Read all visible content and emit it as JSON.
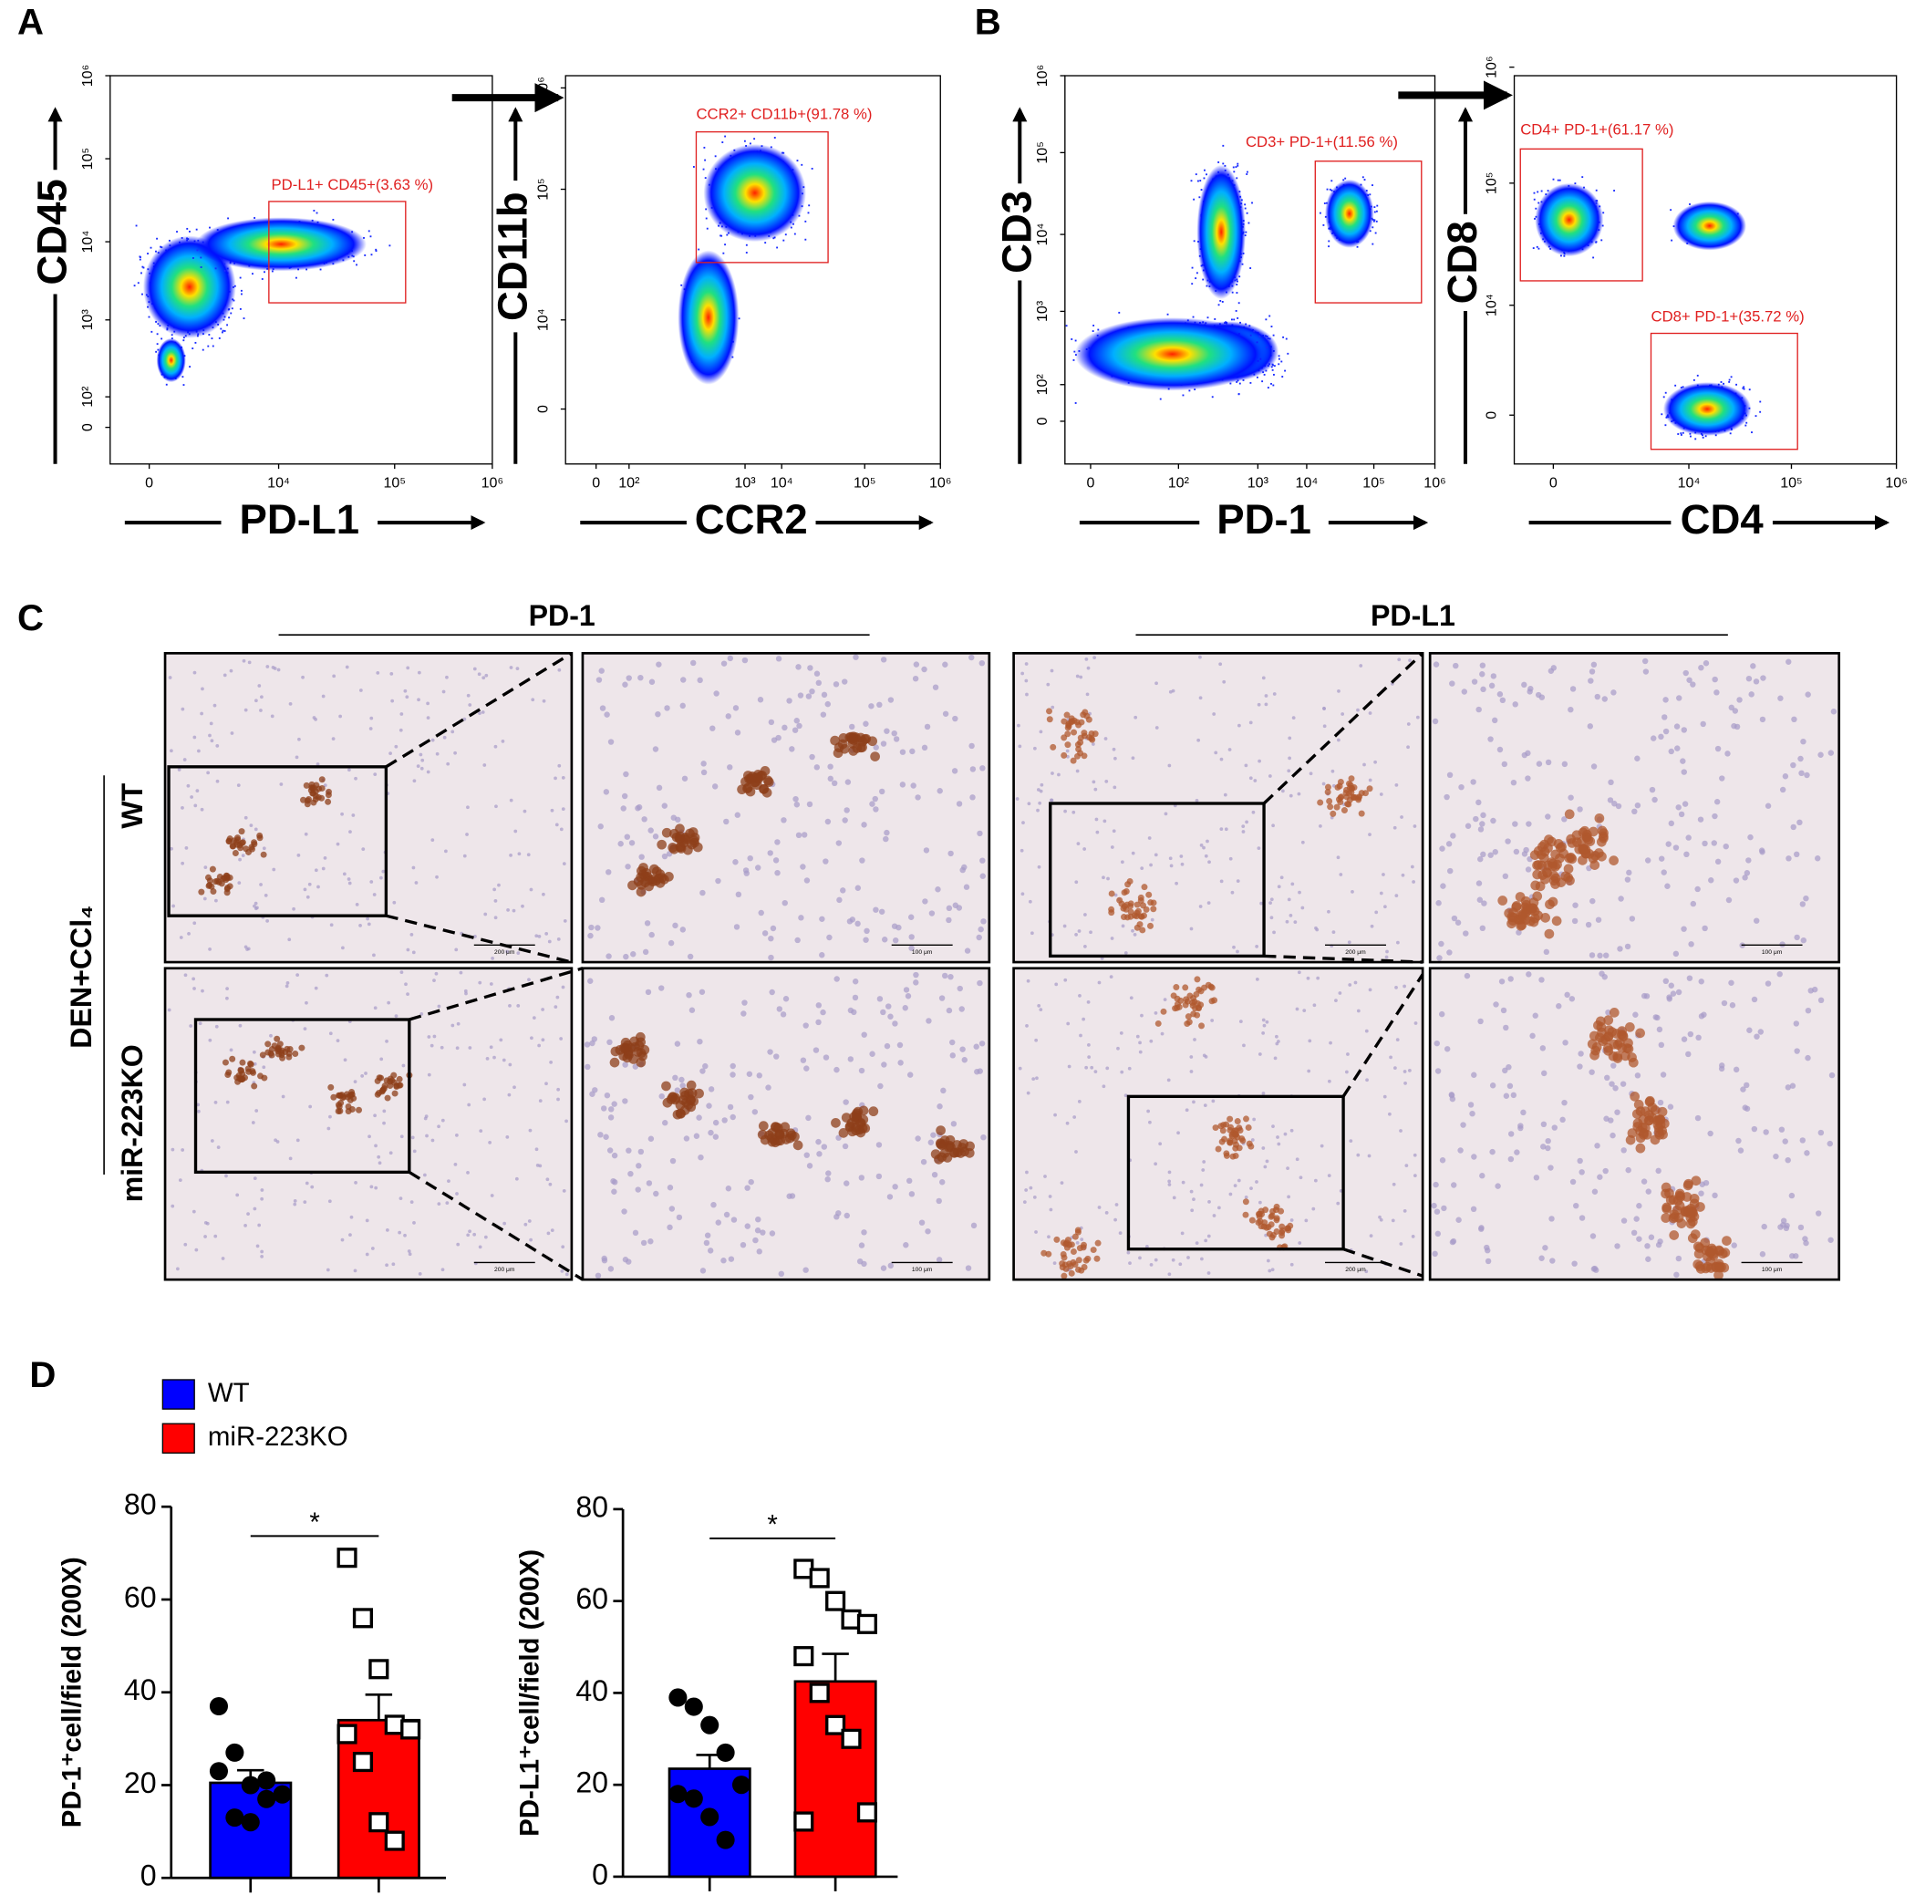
{
  "panel_labels": [
    "A",
    "B",
    "C",
    "D"
  ],
  "flow_plots": [
    {
      "y_label": "CD45",
      "x_label": "PD-L1",
      "yticks": [
        "10⁶",
        "10⁵",
        "10⁴",
        "10³",
        "10²",
        "0"
      ],
      "xticks": [
        "0",
        "10⁴",
        "10⁵",
        "10⁶"
      ],
      "gates": [
        "PD-L1+ CD45+(3.63 %)"
      ]
    },
    {
      "y_label": "CD11b",
      "x_label": "CCR2",
      "yticks": [
        "10⁶",
        "10⁵",
        "10⁴",
        "0"
      ],
      "xticks": [
        "0",
        "10²",
        "10³",
        "10⁴",
        "10⁵",
        "10⁶"
      ],
      "gates": [
        "CCR2+ CD11b+(91.78 %)"
      ]
    },
    {
      "y_label": "CD3",
      "x_label": "PD-1",
      "yticks": [
        "10⁶",
        "10⁵",
        "10⁴",
        "10³",
        "10²",
        "0"
      ],
      "xticks": [
        "0",
        "10²",
        "10³",
        "10⁴",
        "10⁵",
        "10⁶"
      ],
      "gates": [
        "CD3+ PD-1+(11.56 %)"
      ]
    },
    {
      "y_label": "CD8",
      "x_label": "CD4",
      "yticks": [
        "10⁶",
        "10⁵",
        "10⁴",
        "0"
      ],
      "xticks": [
        "0",
        "10⁴",
        "10⁵",
        "10⁶"
      ],
      "gates": [
        "CD4+ PD-1+(61.17 %)",
        "CD8+ PD-1+(35.72 %)"
      ]
    }
  ],
  "histology": {
    "columns": [
      "PD-1",
      "PD-L1"
    ],
    "group": "DEN+CCl₄",
    "rows": [
      "WT",
      "miR-223KO"
    ],
    "scale_bars": [
      "200 μm",
      "100 μm"
    ]
  },
  "legend": [
    {
      "name": "WT",
      "color": "#0000ff"
    },
    {
      "name": "miR-223KO",
      "color": "#ff0000"
    }
  ],
  "chart_data": [
    {
      "type": "bar",
      "y_label": "PD-1⁺cell/field (200X)",
      "categories": [
        null,
        null
      ],
      "values": [
        20.5,
        34
      ],
      "errors": [
        2.7,
        5.5
      ],
      "colors": [
        "#0000ff",
        "#ff0000"
      ],
      "markers": [
        "circle",
        "square"
      ],
      "points": [
        [
          37,
          27,
          20,
          21,
          18,
          23,
          13,
          12,
          17
        ],
        [
          69,
          56,
          45,
          33,
          32,
          31,
          25,
          12,
          8
        ]
      ],
      "ylim": [
        0,
        80
      ],
      "yticks": [
        0,
        20,
        40,
        60,
        80
      ],
      "annotation": "*"
    },
    {
      "type": "bar",
      "y_label": "PD-L1⁺cell/field (200X)",
      "categories": [
        null,
        null
      ],
      "values": [
        23.5,
        42.5
      ],
      "errors": [
        3,
        6
      ],
      "colors": [
        "#0000ff",
        "#ff0000"
      ],
      "markers": [
        "circle",
        "square"
      ],
      "points": [
        [
          39,
          37,
          33,
          27,
          20,
          18,
          17,
          13,
          8
        ],
        [
          67,
          65,
          60,
          56,
          55,
          48,
          40,
          33,
          30,
          14,
          12
        ]
      ],
      "ylim": [
        0,
        80
      ],
      "yticks": [
        0,
        20,
        40,
        60,
        80
      ],
      "annotation": "*"
    }
  ]
}
